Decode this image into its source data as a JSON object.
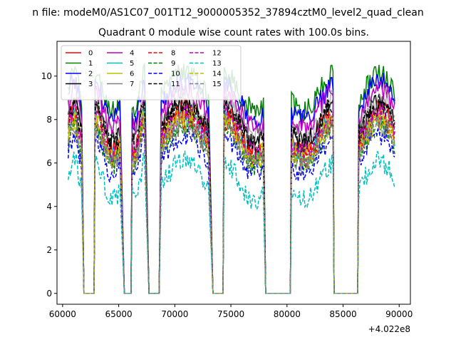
{
  "chart_data": {
    "type": "line",
    "suptitle": "n file: modeM0/AS1C07_001T12_9000005352_37894cztM0_level2_quad_clean",
    "title": "Quadrant 0 module wise count rates with 100.0s bins.",
    "xlabel": "",
    "ylabel": "",
    "x_offset_label": "+4.022e8",
    "xlim": [
      59500,
      91000
    ],
    "ylim": [
      -0.5,
      11.6
    ],
    "xticks": [
      60000,
      65000,
      70000,
      75000,
      80000,
      85000,
      90000
    ],
    "xtick_labels": [
      "60000",
      "65000",
      "70000",
      "75000",
      "80000",
      "85000",
      "90000"
    ],
    "yticks": [
      0,
      2,
      4,
      6,
      8,
      10
    ],
    "ytick_labels": [
      "0",
      "2",
      "4",
      "6",
      "8",
      "10"
    ],
    "grid": false,
    "legend_position": "top-left",
    "legend_columns": 4,
    "on_segments": [
      [
        60500,
        61700
      ],
      [
        62900,
        65100
      ],
      [
        66200,
        67300
      ],
      [
        68800,
        73000
      ],
      [
        74400,
        77900
      ],
      [
        80400,
        84100
      ],
      [
        86400,
        89600
      ]
    ],
    "off_segments": [
      [
        61900,
        62800
      ],
      [
        65500,
        66100
      ],
      [
        67700,
        68600
      ],
      [
        73400,
        74300
      ],
      [
        78100,
        80300
      ],
      [
        84200,
        86300
      ]
    ],
    "off_level": 0,
    "series": [
      {
        "name": "0",
        "color": "#ff0000",
        "style": "solid",
        "level": 7.6
      },
      {
        "name": "1",
        "color": "#008000",
        "style": "solid",
        "level": 9.3
      },
      {
        "name": "2",
        "color": "#0000ff",
        "style": "solid",
        "level": 8.9
      },
      {
        "name": "3",
        "color": "#000000",
        "style": "solid",
        "level": 7.9
      },
      {
        "name": "4",
        "color": "#bf00bf",
        "style": "solid",
        "level": 8.5
      },
      {
        "name": "5",
        "color": "#00bfbf",
        "style": "solid",
        "level": 7.2
      },
      {
        "name": "6",
        "color": "#bfbf00",
        "style": "solid",
        "level": 7.3
      },
      {
        "name": "7",
        "color": "#808080",
        "style": "solid",
        "level": 8.1
      },
      {
        "name": "8",
        "color": "#ff0000",
        "style": "dashed",
        "level": 7.1
      },
      {
        "name": "9",
        "color": "#008000",
        "style": "dashed",
        "level": 6.8
      },
      {
        "name": "10",
        "color": "#0000ff",
        "style": "dashed",
        "level": 6.4
      },
      {
        "name": "11",
        "color": "#000000",
        "style": "dashed",
        "level": 7.8
      },
      {
        "name": "12",
        "color": "#bf00bf",
        "style": "dashed",
        "level": 7.4
      },
      {
        "name": "13",
        "color": "#00bfbf",
        "style": "dashed",
        "level": 5.2
      },
      {
        "name": "14",
        "color": "#bfbf00",
        "style": "dashed",
        "level": 7.0
      },
      {
        "name": "15",
        "color": "#808080",
        "style": "dashed",
        "level": 6.9
      }
    ]
  }
}
